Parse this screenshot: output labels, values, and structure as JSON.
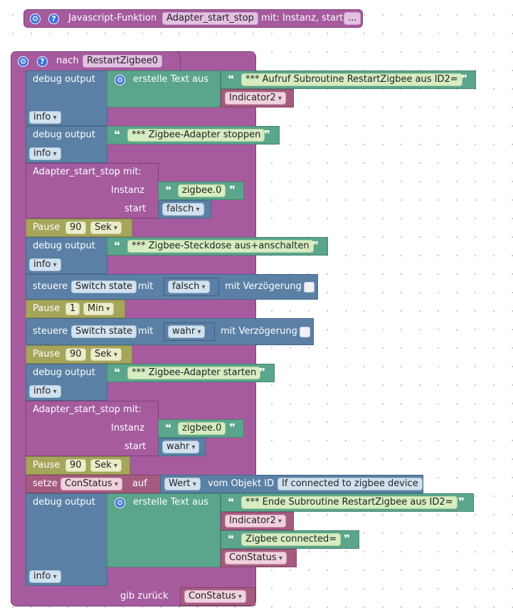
{
  "header_block": {
    "label": "Javascript-Funktion",
    "name": "Adapter_start_stop",
    "params_label": "mit: Instanz, start",
    "more": "..."
  },
  "proc": {
    "keyword": "nach",
    "name": "RestartZigbee0",
    "return_label": "gib zurück",
    "return_var": "ConStatus"
  },
  "blocks": {
    "debug_label": "debug output",
    "create_text": "erstelle Text aus",
    "info": "info",
    "adapter_label": "Adapter_start_stop  mit:",
    "instanz_label": "Instanz",
    "start_label": "start",
    "pause_label": "Pause",
    "steuere_label": "steuere",
    "mit_label": "mit",
    "delay_label": "mit Verzögerung",
    "setze_label": "setze",
    "auf_label": "auf",
    "wert_label": "Wert",
    "vom_objekt": "vom Objekt ID",
    "t1": "*** Aufruf Subroutine RestartZigbee aus ID2=",
    "var_indicator": "Indicator2",
    "t2": "*** Zigbee-Adapter stoppen",
    "zigbee_inst": "zigbee.0",
    "false_val": "falsch",
    "true_val": "wahr",
    "pause_90": "90",
    "pause_1": "1",
    "unit_sek": "Sek",
    "unit_min": "Min",
    "t3": "*** Zigbee-Steckdose aus+anschalten",
    "switch_state": "Switch state",
    "t4": "*** Zigbee-Adapter starten",
    "var_constatus": "ConStatus",
    "object_id": "If connected to zigbee device",
    "t5": "*** Ende Subroutine RestartZigbee aus ID2=",
    "t6": "Zigbee connected="
  },
  "colors": {
    "procedure": "#a55b9e",
    "debug": "#5b80a5",
    "text": "#5ba58c",
    "variable": "#a55b80",
    "pause": "#a5a55b"
  }
}
